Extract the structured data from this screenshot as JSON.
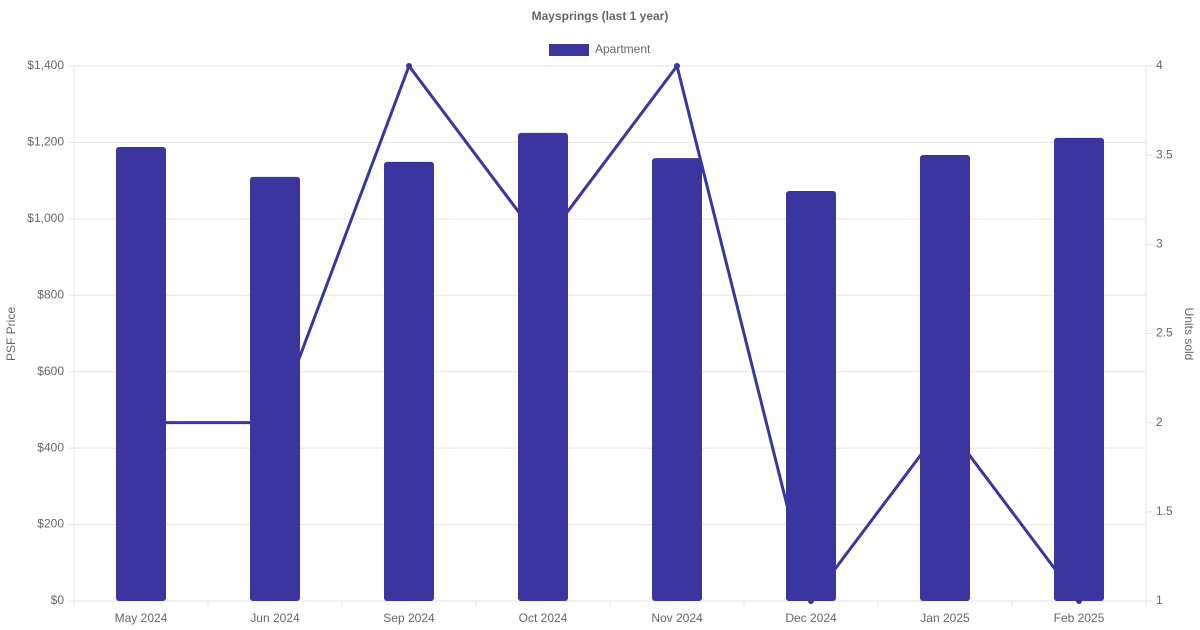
{
  "chart_data": {
    "type": "bar-line",
    "title": "Maysprings (last 1 year)",
    "categories": [
      "May 2024",
      "Jun 2024",
      "Sep 2024",
      "Oct 2024",
      "Nov 2024",
      "Dec 2024",
      "Jan 2025",
      "Feb 2025"
    ],
    "series": [
      {
        "name": "Apartment",
        "type": "bar",
        "color": "#3b35a0",
        "values": [
          1188,
          1110,
          1149,
          1225,
          1159,
          1073,
          1167,
          1212
        ]
      },
      {
        "type": "line",
        "axis": "y2",
        "color": "#3b35a0",
        "values": [
          2,
          2,
          4,
          3,
          4,
          1,
          2,
          1
        ]
      }
    ],
    "ylabel": "PSF Price",
    "y2label": "Units sold",
    "ylim": [
      0,
      1400
    ],
    "yticks": [
      {
        "value": 0,
        "label": "$0"
      },
      {
        "value": 200,
        "label": "$200"
      },
      {
        "value": 400,
        "label": "$400"
      },
      {
        "value": 600,
        "label": "$600"
      },
      {
        "value": 800,
        "label": "$800"
      },
      {
        "value": 1000,
        "label": "$1,000"
      },
      {
        "value": 1200,
        "label": "$1,200"
      },
      {
        "value": 1400,
        "label": "$1,400"
      }
    ],
    "y2lim": [
      1,
      4
    ],
    "y2ticks": [
      1,
      1.5,
      2,
      2.5,
      3,
      3.5,
      4
    ],
    "grid": true,
    "legend": "top"
  }
}
